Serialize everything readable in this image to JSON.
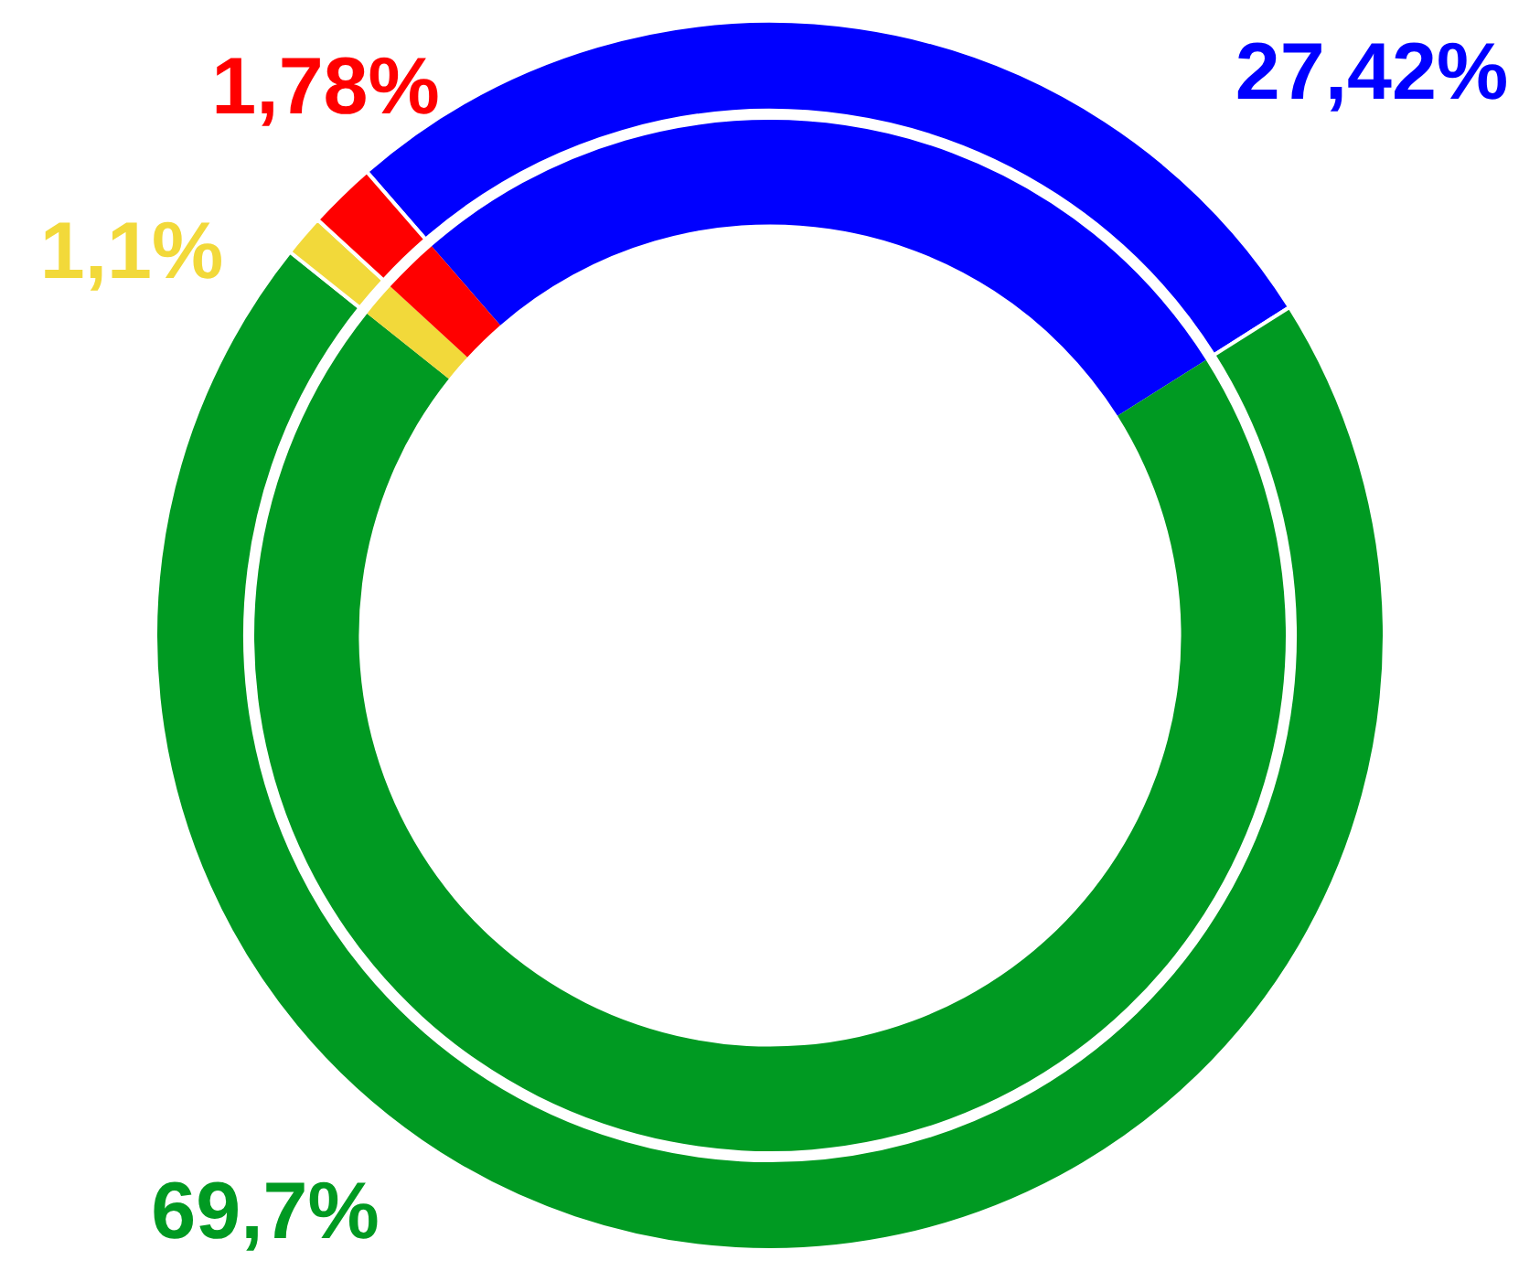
{
  "chart_data": {
    "type": "donut",
    "categories": [
      null,
      null,
      null,
      null
    ],
    "colors": [
      "#0000ff",
      "#009a22",
      "#f2d93a",
      "#ff0000"
    ],
    "series": [
      {
        "values": [
          27.42,
          69.7,
          1.1,
          1.78
        ]
      },
      {
        "values": [
          27.42,
          69.7,
          1.1,
          1.78
        ]
      }
    ],
    "value_labels": [
      "27,42%",
      "69,7%",
      "1,1%",
      "1,78%"
    ],
    "legend": false
  }
}
